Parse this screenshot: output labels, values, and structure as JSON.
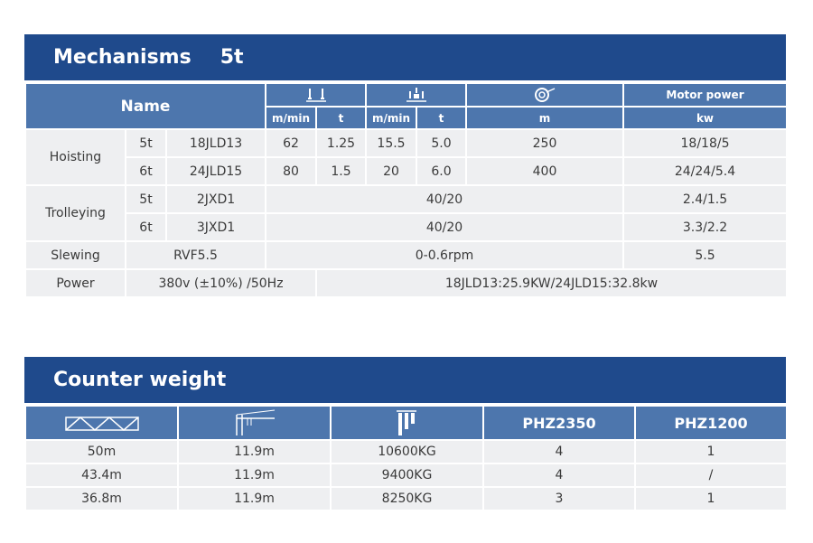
{
  "mechanisms": {
    "title": "Mechanisms",
    "subtitle": "5t",
    "header": {
      "name": "Name",
      "motor_power": "Motor power",
      "hoist_speed_unit": "m/min",
      "hoist_load_unit": "t",
      "trolley_speed_unit": "m/min",
      "trolley_load_unit": "t",
      "rope_unit": "m",
      "power_unit": "kw",
      "hoist_icon": "hook-icon",
      "trolley_icon": "trolley-hook-icon",
      "rope_icon": "rope-drum-icon"
    },
    "rows": {
      "hoisting": {
        "label": "Hoisting",
        "a": {
          "cap": "5t",
          "model": "18JLD13",
          "v1": "62",
          "t1": "1.25",
          "v2": "15.5",
          "t2": "5.0",
          "rope": "250",
          "power": "18/18/5"
        },
        "b": {
          "cap": "6t",
          "model": "24JLD15",
          "v1": "80",
          "t1": "1.5",
          "v2": "20",
          "t2": "6.0",
          "rope": "400",
          "power": "24/24/5.4"
        }
      },
      "trolleying": {
        "label": "Trolleying",
        "a": {
          "cap": "5t",
          "model": "2JXD1",
          "speed": "40/20",
          "power": "2.4/1.5"
        },
        "b": {
          "cap": "6t",
          "model": "3JXD1",
          "speed": "40/20",
          "power": "3.3/2.2"
        }
      },
      "slewing": {
        "label": "Slewing",
        "model": "RVF5.5",
        "speed": "0-0.6rpm",
        "power": "5.5"
      },
      "power": {
        "label": "Power",
        "supply": "380v (±10%) /50Hz",
        "total": "18JLD13:25.9KW/24JLD15:32.8kw"
      }
    }
  },
  "counter_weight": {
    "title": "Counter weight",
    "header": {
      "col1_icon": "jib-truss-icon",
      "col2_icon": "tower-height-icon",
      "col3_icon": "counterweight-block-icon",
      "col4": "PHZ2350",
      "col5": "PHZ1200"
    },
    "rows": [
      {
        "jib": "50m",
        "height": "11.9m",
        "weight": "10600KG",
        "phz2350": "4",
        "phz1200": "1"
      },
      {
        "jib": "43.4m",
        "height": "11.9m",
        "weight": "9400KG",
        "phz2350": "4",
        "phz1200": "/"
      },
      {
        "jib": "36.8m",
        "height": "11.9m",
        "weight": "8250KG",
        "phz2350": "3",
        "phz1200": "1"
      }
    ]
  },
  "colors": {
    "header_dark": "#1f4a8c",
    "header_mid": "#4d76ad",
    "cell_bg": "#eeeff1"
  }
}
